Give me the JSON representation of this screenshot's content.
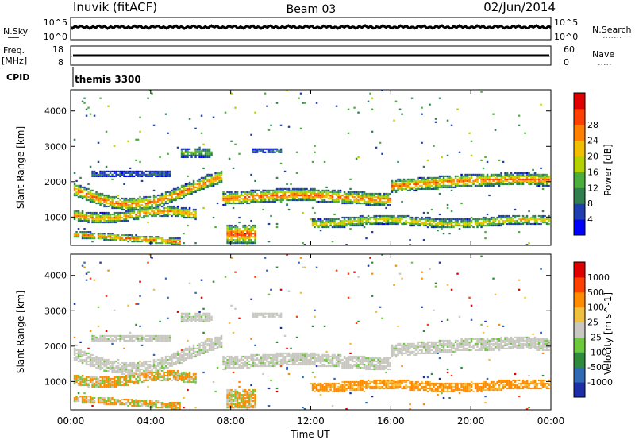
{
  "header": {
    "station": "Inuvik (fitACF)",
    "beam": "Beam 03",
    "date": "02/Jun/2014"
  },
  "top_panels": {
    "nsky_label": "N.Sky",
    "nsearch_label": "N.Search",
    "nsky_ticks": [
      "10^5",
      "10^0"
    ],
    "nsearch_ticks": [
      "10^5",
      "10^0"
    ],
    "freq_label": "Freq.",
    "freq_unit": "[MHz]",
    "freq_ticks": [
      "18",
      "8"
    ],
    "nave_label": "Nave",
    "nave_ticks": [
      "60",
      "0"
    ],
    "cpid_label": "CPID",
    "cpid_value": "themis 3300"
  },
  "colors": {
    "power": [
      "#0000ff",
      "#1f3fb0",
      "#2f7f4f",
      "#4cae3c",
      "#b4d200",
      "#f0c000",
      "#ff8000",
      "#ff4000",
      "#e00000"
    ],
    "velocity": [
      "#1c2fa8",
      "#2f6ab4",
      "#2e8b3c",
      "#6cc83c",
      "#c8c8c0",
      "#f0c040",
      "#ff8c00",
      "#ff4000",
      "#e00000"
    ]
  },
  "chart_data": [
    {
      "type": "heatmap",
      "name": "power",
      "ylabel": "Slant Range [km]",
      "yticks": [
        "1000",
        "2000",
        "3000",
        "4000"
      ],
      "ylim": [
        200,
        4600
      ],
      "xlim": [
        0,
        24
      ],
      "colorbar_label": "Power [dB]",
      "colorbar_ticks": [
        "4",
        "8",
        "12",
        "16",
        "20",
        "24",
        "28"
      ]
    },
    {
      "type": "heatmap",
      "name": "velocity",
      "ylabel": "Slant Range [km]",
      "yticks": [
        "1000",
        "2000",
        "3000",
        "4000"
      ],
      "ylim": [
        200,
        4600
      ],
      "xlim": [
        0,
        24
      ],
      "colorbar_label": "Velocity [m s^-1]",
      "colorbar_ticks": [
        "1000",
        "500",
        "100",
        "25",
        "-25",
        "-100",
        "-500",
        "-1000"
      ]
    }
  ],
  "x_axis": {
    "ticks": [
      "00:00",
      "04:00",
      "08:00",
      "12:00",
      "16:00",
      "20:00",
      "00:00"
    ],
    "label": "Time UT"
  }
}
